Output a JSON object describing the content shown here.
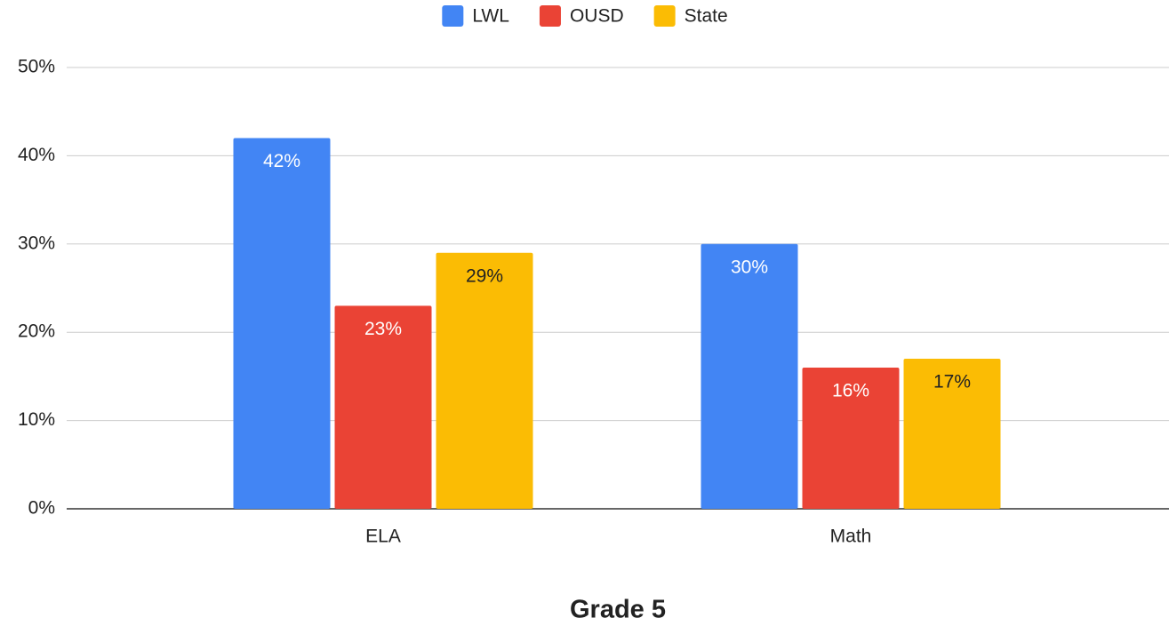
{
  "chart_data": {
    "type": "bar",
    "x_label": "Grade 5",
    "categories": [
      "ELA",
      "Math"
    ],
    "series": [
      {
        "name": "LWL",
        "color": "#4285f4",
        "label_color": "#ffffff",
        "values": [
          42,
          30
        ],
        "value_labels": [
          "42%",
          "30%"
        ]
      },
      {
        "name": "OUSD",
        "color": "#ea4335",
        "label_color": "#ffffff",
        "values": [
          23,
          16
        ],
        "value_labels": [
          "23%",
          "16%"
        ]
      },
      {
        "name": "State",
        "color": "#fbbc04",
        "label_color": "#222222",
        "values": [
          29,
          17
        ],
        "value_labels": [
          "29%",
          "17%"
        ]
      }
    ],
    "ylim": [
      0,
      50
    ],
    "yticks": [
      {
        "value": 0,
        "label": "0%"
      },
      {
        "value": 10,
        "label": "10%"
      },
      {
        "value": 20,
        "label": "20%"
      },
      {
        "value": 30,
        "label": "30%"
      },
      {
        "value": 40,
        "label": "40%"
      },
      {
        "value": 50,
        "label": "50%"
      }
    ],
    "grid": true,
    "legend": "top"
  }
}
